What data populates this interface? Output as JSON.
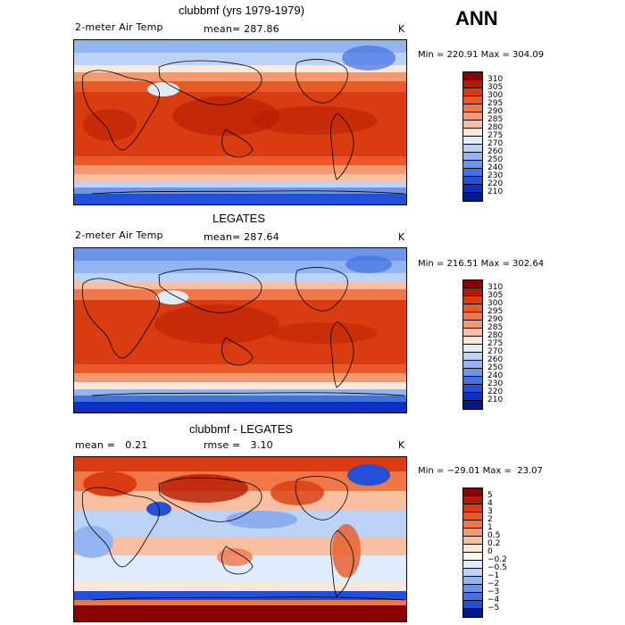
{
  "season": "ANN",
  "panels": [
    {
      "title": "clubbmf (yrs 1979-1979)",
      "left_label": "2-meter Air Temp",
      "center_label": "mean= 287.86",
      "units": "K",
      "minmax": "Min = 220.91 Max = 304.09",
      "colorbar": {
        "labels": [
          "310",
          "305",
          "300",
          "295",
          "290",
          "285",
          "280",
          "275",
          "270",
          "260",
          "250",
          "240",
          "230",
          "220",
          "210"
        ],
        "colors": [
          "#8b0000",
          "#b51a00",
          "#d83c10",
          "#e95a28",
          "#f07848",
          "#f59a70",
          "#f8c0a0",
          "#fde8d8",
          "#e0ecfb",
          "#bcd2f6",
          "#92b4f0",
          "#6c95ea",
          "#4271e2",
          "#2350d8",
          "#0a30c4",
          "#001a8a"
        ]
      }
    },
    {
      "title": "LEGATES",
      "left_label": "2-meter Air Temp",
      "center_label": "mean= 287.64",
      "units": "K",
      "minmax": "Min = 216.51 Max = 302.64",
      "colorbar": {
        "labels": [
          "310",
          "305",
          "300",
          "295",
          "290",
          "285",
          "280",
          "275",
          "270",
          "260",
          "250",
          "240",
          "230",
          "220",
          "210"
        ],
        "colors": [
          "#8b0000",
          "#b51a00",
          "#d83c10",
          "#e95a28",
          "#f07848",
          "#f59a70",
          "#f8c0a0",
          "#fde8d8",
          "#e0ecfb",
          "#bcd2f6",
          "#92b4f0",
          "#6c95ea",
          "#4271e2",
          "#2350d8",
          "#0a30c4",
          "#001a8a"
        ]
      }
    },
    {
      "title": "clubbmf - LEGATES",
      "left_label": "mean =   0.21",
      "center_label": "rmse =   3.10",
      "units": "K",
      "minmax": "Min = −29.01 Max =  23.07",
      "colorbar": {
        "labels": [
          "5",
          "4",
          "3",
          "2",
          "1",
          "0.5",
          "0.2",
          "0",
          "−0.2",
          "−0.5",
          "−1",
          "−2",
          "−3",
          "−4",
          "−5"
        ],
        "colors": [
          "#8b0000",
          "#b51a00",
          "#d83c10",
          "#e95a28",
          "#f07848",
          "#f59a70",
          "#f8c0a0",
          "#fde8d8",
          "#fdf4ee",
          "#e0ecfb",
          "#bcd2f6",
          "#92b4f0",
          "#6c95ea",
          "#4271e2",
          "#2350d8",
          "#001a8a"
        ]
      }
    }
  ]
}
